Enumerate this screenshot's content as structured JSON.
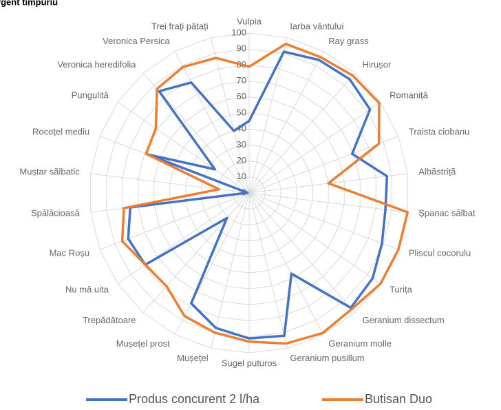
{
  "chart_data": {
    "type": "radar",
    "title": "emergent timpuriu",
    "categories": [
      "Vulpia",
      "Iarba vântului",
      "Ray grass",
      "Hirușor",
      "Romaniță",
      "Traista ciobanu",
      "Albăstriță",
      "Șpanac sălbat",
      "Pliscul cocorulu",
      "Turița",
      "Geranium dissectum",
      "Geranium molle",
      "Geranium pusillum",
      "Sugel puturos",
      "Mușețel",
      "Mușețel prost",
      "Trepădătoare",
      "Nu mă uita",
      "Mac Roșu",
      "Spălăcioasă",
      "Muștar sălbatic",
      "Rocoțel mediu",
      "Pungulită",
      "Veronica heredifolia",
      "Veronica Persica",
      "Trei frați pătați"
    ],
    "series": [
      {
        "name": "Produs concurent 2 l/ha",
        "color": "#4472c4",
        "values": [
          45,
          91,
          94,
          95,
          92,
          69,
          87,
          86,
          89,
          94,
          96,
          57,
          92,
          91,
          87,
          78,
          21,
          79,
          81,
          75,
          1,
          68,
          26,
          85,
          78,
          40
        ]
      },
      {
        "name": "Butisan Duo",
        "color": "#ed7d31",
        "values": [
          79,
          96,
          96,
          98,
          99,
          87,
          50,
          100,
          100,
          100,
          97,
          99,
          97,
          93,
          90,
          87,
          78,
          79,
          85,
          79,
          19,
          69,
          71,
          87,
          89,
          87
        ]
      }
    ],
    "ylim": [
      0,
      100
    ],
    "yticks": [
      0,
      10,
      20,
      30,
      40,
      50,
      60,
      70,
      80,
      90,
      100
    ],
    "grid": true,
    "legend": "bottom"
  }
}
